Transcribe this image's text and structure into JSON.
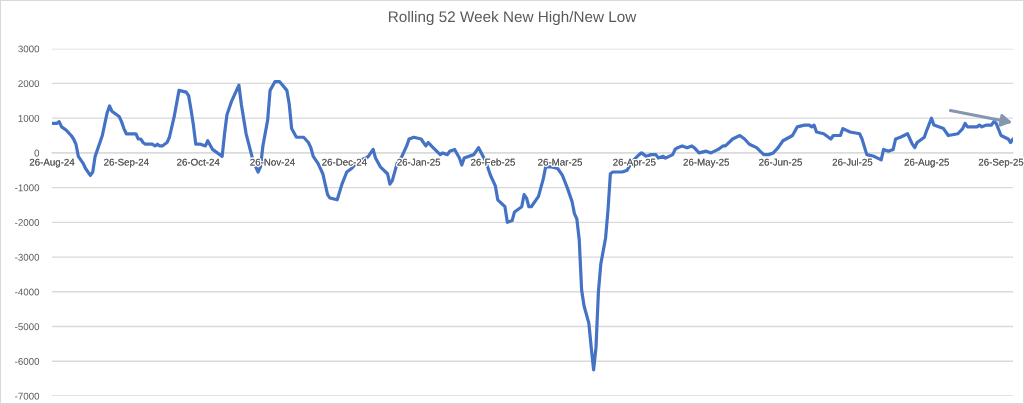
{
  "chart_data": {
    "type": "line",
    "title": "Rolling 52 Week New High/New Low",
    "x": [
      "2024-08-26",
      "2024-08-27",
      "2024-08-28",
      "2024-08-29",
      "2024-08-30",
      "2024-09-01",
      "2024-09-03",
      "2024-09-04",
      "2024-09-05",
      "2024-09-06",
      "2024-09-08",
      "2024-09-09",
      "2024-09-11",
      "2024-09-12",
      "2024-09-13",
      "2024-09-15",
      "2024-09-16",
      "2024-09-18",
      "2024-09-19",
      "2024-09-20",
      "2024-09-22",
      "2024-09-23",
      "2024-09-24",
      "2024-09-25",
      "2024-09-26",
      "2024-09-29",
      "2024-09-30",
      "2024-10-01",
      "2024-10-02",
      "2024-10-03",
      "2024-10-04",
      "2024-10-07",
      "2024-10-08",
      "2024-10-09",
      "2024-10-10",
      "2024-10-11",
      "2024-10-13",
      "2024-10-14",
      "2024-10-16",
      "2024-10-18",
      "2024-10-21",
      "2024-10-22",
      "2024-10-23",
      "2024-10-24",
      "2024-10-25",
      "2024-10-27",
      "2024-10-29",
      "2024-10-30",
      "2024-11-01",
      "2024-11-03",
      "2024-11-05",
      "2024-11-06",
      "2024-11-07",
      "2024-11-09",
      "2024-11-12",
      "2024-11-13",
      "2024-11-15",
      "2024-11-18",
      "2024-11-20",
      "2024-11-21",
      "2024-11-22",
      "2024-11-24",
      "2024-11-25",
      "2024-11-27",
      "2024-11-29",
      "2024-12-02",
      "2024-12-03",
      "2024-12-04",
      "2024-12-06",
      "2024-12-09",
      "2024-12-11",
      "2024-12-12",
      "2024-12-13",
      "2024-12-15",
      "2024-12-17",
      "2024-12-19",
      "2024-12-20",
      "2024-12-23",
      "2024-12-25",
      "2024-12-27",
      "2024-12-29",
      "2024-12-31",
      "2025-01-02",
      "2025-01-04",
      "2025-01-05",
      "2025-01-07",
      "2025-01-08",
      "2025-01-10",
      "2025-01-13",
      "2025-01-14",
      "2025-01-15",
      "2025-01-17",
      "2025-01-19",
      "2025-01-21",
      "2025-01-22",
      "2025-01-24",
      "2025-01-27",
      "2025-01-28",
      "2025-01-29",
      "2025-01-30",
      "2025-02-01",
      "2025-02-04",
      "2025-02-05",
      "2025-02-07",
      "2025-02-08",
      "2025-02-10",
      "2025-02-12",
      "2025-02-13",
      "2025-02-14",
      "2025-02-18",
      "2025-02-20",
      "2025-02-23",
      "2025-02-25",
      "2025-02-27",
      "2025-02-28",
      "2025-03-03",
      "2025-03-04",
      "2025-03-06",
      "2025-03-07",
      "2025-03-10",
      "2025-03-11",
      "2025-03-12",
      "2025-03-13",
      "2025-03-14",
      "2025-03-17",
      "2025-03-19",
      "2025-03-20",
      "2025-03-22",
      "2025-03-25",
      "2025-03-27",
      "2025-03-29",
      "2025-03-31",
      "2025-04-01",
      "2025-04-02",
      "2025-04-03",
      "2025-04-04",
      "2025-04-05",
      "2025-04-07",
      "2025-04-08",
      "2025-04-09",
      "2025-04-10",
      "2025-04-11",
      "2025-04-12",
      "2025-04-14",
      "2025-04-15",
      "2025-04-16",
      "2025-04-17",
      "2025-04-21",
      "2025-04-23",
      "2025-04-25",
      "2025-04-28",
      "2025-04-29",
      "2025-05-01",
      "2025-05-03",
      "2025-05-05",
      "2025-05-06",
      "2025-05-08",
      "2025-05-09",
      "2025-05-12",
      "2025-05-13",
      "2025-05-14",
      "2025-05-16",
      "2025-05-18",
      "2025-05-20",
      "2025-05-21",
      "2025-05-23",
      "2025-05-26",
      "2025-05-28",
      "2025-05-31",
      "2025-06-02",
      "2025-06-03",
      "2025-06-06",
      "2025-06-09",
      "2025-06-11",
      "2025-06-13",
      "2025-06-16",
      "2025-06-19",
      "2025-06-21",
      "2025-06-23",
      "2025-06-25",
      "2025-06-27",
      "2025-07-01",
      "2025-07-03",
      "2025-07-06",
      "2025-07-08",
      "2025-07-09",
      "2025-07-10",
      "2025-07-11",
      "2025-07-14",
      "2025-07-17",
      "2025-07-18",
      "2025-07-21",
      "2025-07-22",
      "2025-07-25",
      "2025-07-29",
      "2025-07-30",
      "2025-08-01",
      "2025-08-04",
      "2025-08-07",
      "2025-08-08",
      "2025-08-10",
      "2025-08-12",
      "2025-08-13",
      "2025-08-15",
      "2025-08-18",
      "2025-08-20",
      "2025-08-21",
      "2025-08-22",
      "2025-08-25",
      "2025-08-26",
      "2025-08-28",
      "2025-08-29",
      "2025-09-02",
      "2025-09-04",
      "2025-09-08",
      "2025-09-10",
      "2025-09-11",
      "2025-09-12",
      "2025-09-16",
      "2025-09-17",
      "2025-09-18",
      "2025-09-20",
      "2025-09-22",
      "2025-09-23",
      "2025-09-24",
      "2025-09-26",
      "2025-09-29",
      "2025-09-30",
      "2025-10-01"
    ],
    "series": [
      {
        "color": "#4472c4",
        "values": [
          850,
          850,
          850,
          900,
          750,
          650,
          500,
          400,
          250,
          -100,
          -300,
          -450,
          -650,
          -550,
          -100,
          300,
          500,
          1150,
          1350,
          1200,
          1100,
          1050,
          900,
          700,
          550,
          550,
          550,
          400,
          400,
          300,
          250,
          250,
          200,
          250,
          200,
          200,
          300,
          450,
          1050,
          1800,
          1750,
          1650,
          1250,
          800,
          250,
          250,
          200,
          350,
          100,
          0,
          -100,
          550,
          1100,
          1500,
          1950,
          1400,
          550,
          -250,
          -550,
          -400,
          200,
          950,
          1800,
          2050,
          2050,
          1800,
          1400,
          700,
          450,
          450,
          300,
          150,
          -100,
          -300,
          -600,
          -1200,
          -1300,
          -1350,
          -900,
          -550,
          -450,
          -300,
          -200,
          -150,
          -100,
          100,
          -150,
          -400,
          -600,
          -900,
          -800,
          -300,
          -100,
          200,
          400,
          450,
          400,
          300,
          200,
          300,
          150,
          -50,
          0,
          -50,
          50,
          100,
          -150,
          -350,
          -150,
          -50,
          150,
          -250,
          -650,
          -950,
          -1350,
          -1550,
          -2000,
          -1950,
          -1700,
          -1550,
          -1200,
          -1300,
          -1550,
          -1550,
          -1250,
          -750,
          -400,
          -400,
          -450,
          -650,
          -1000,
          -1400,
          -1750,
          -1900,
          -2500,
          -3950,
          -4400,
          -4900,
          -5600,
          -6250,
          -5600,
          -4000,
          -3200,
          -2450,
          -1650,
          -600,
          -550,
          -550,
          -500,
          -250,
          -50,
          0,
          -100,
          -50,
          -50,
          -150,
          -100,
          -150,
          -50,
          100,
          150,
          200,
          150,
          200,
          150,
          0,
          50,
          0,
          100,
          200,
          200,
          400,
          500,
          400,
          250,
          150,
          -50,
          -50,
          0,
          150,
          350,
          500,
          750,
          800,
          800,
          750,
          800,
          600,
          550,
          400,
          500,
          500,
          700,
          600,
          550,
          400,
          -50,
          -100,
          -200,
          100,
          50,
          100,
          400,
          450,
          550,
          250,
          150,
          300,
          450,
          650,
          1000,
          800,
          700,
          500,
          550,
          700,
          850,
          750,
          750,
          800,
          750,
          800,
          800,
          900,
          850,
          500,
          400,
          300,
          400
        ]
      }
    ],
    "xlim": [
      "2024-08-26",
      "2025-10-01"
    ],
    "xticks": [
      {
        "value": "2024-08-26",
        "label": "26-Aug-24"
      },
      {
        "value": "2024-09-26",
        "label": "26-Sep-24"
      },
      {
        "value": "2024-10-26",
        "label": "26-Oct-24"
      },
      {
        "value": "2024-11-26",
        "label": "26-Nov-24"
      },
      {
        "value": "2024-12-26",
        "label": "26-Dec-24"
      },
      {
        "value": "2025-01-26",
        "label": "26-Jan-25"
      },
      {
        "value": "2025-02-26",
        "label": "26-Feb-25"
      },
      {
        "value": "2025-03-26",
        "label": "26-Mar-25"
      },
      {
        "value": "2025-04-26",
        "label": "26-Apr-25"
      },
      {
        "value": "2025-05-26",
        "label": "26-May-25"
      },
      {
        "value": "2025-06-26",
        "label": "26-Jun-25"
      },
      {
        "value": "2025-07-26",
        "label": "26-Jul-25"
      },
      {
        "value": "2025-08-26",
        "label": "26-Aug-25"
      },
      {
        "value": "2025-09-26",
        "label": "26-Sep-25"
      }
    ],
    "ylim": [
      -7000,
      3000
    ],
    "yticks": [
      -7000,
      -6000,
      -5000,
      -4000,
      -3000,
      -2000,
      -1000,
      0,
      1000,
      2000,
      3000
    ],
    "grid": "y"
  }
}
